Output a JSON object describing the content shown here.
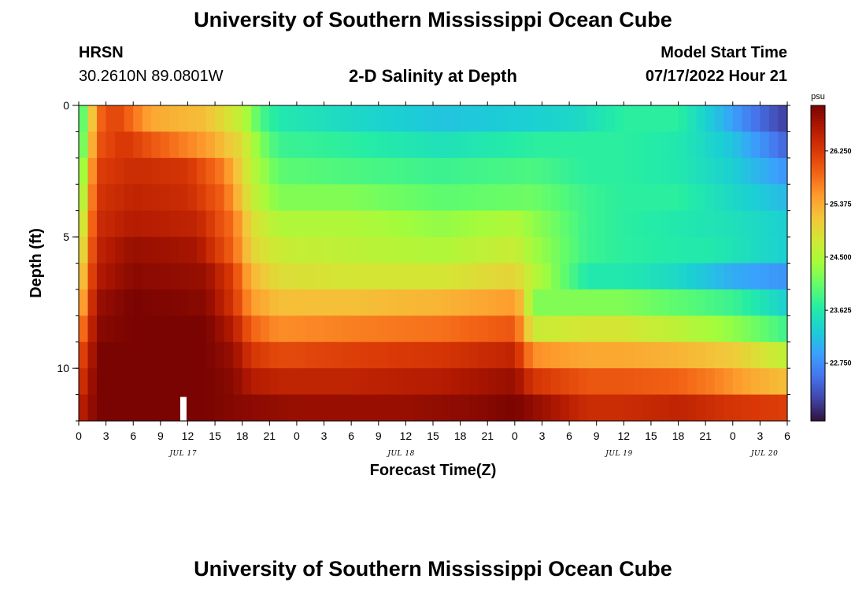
{
  "page": {
    "title_top": "University of Southern Mississippi Ocean Cube",
    "title_bottom": "University of Southern Mississippi Ocean Cube",
    "station": "HRSN",
    "coords": "30.2610N  89.0801W",
    "subtitle": "2-D Salinity at Depth",
    "model_start_label": "Model Start Time",
    "model_start_value": "07/17/2022 Hour 21"
  },
  "chart_data": {
    "type": "heatmap",
    "title": "2-D Salinity at Depth",
    "xlabel": "Forecast Time(Z)",
    "ylabel": "Depth (ft)",
    "x_tick_labels": [
      "0",
      "3",
      "6",
      "9",
      "12",
      "15",
      "18",
      "21",
      "0",
      "3",
      "6",
      "9",
      "12",
      "15",
      "18",
      "21",
      "0",
      "3",
      "6",
      "9",
      "12",
      "15",
      "18",
      "21",
      "0",
      "3",
      "6"
    ],
    "x_hours_range": [
      0,
      78
    ],
    "day_labels": [
      {
        "label": "JUL 17",
        "hour": 11.5
      },
      {
        "label": "JUL 18",
        "hour": 35.5
      },
      {
        "label": "JUL 19",
        "hour": 59.5
      },
      {
        "label": "JUL 20",
        "hour": 75.5
      }
    ],
    "y_tick_labels": [
      "0",
      "5",
      "10"
    ],
    "y_tick_values": [
      0,
      5,
      10
    ],
    "ylim": [
      0,
      12
    ],
    "depth_layers": 12,
    "colorbar": {
      "unit": "psu",
      "range": [
        21.8,
        27.0
      ],
      "tick_labels": [
        "26.250",
        "25.375",
        "24.500",
        "23.625",
        "22.750"
      ],
      "tick_values": [
        26.25,
        25.375,
        24.5,
        23.625,
        22.75
      ],
      "colors": [
        "#30123b",
        "#4145ab",
        "#4675ed",
        "#39a2fc",
        "#1bcfd4",
        "#24eca6",
        "#61fc6c",
        "#a4fc3b",
        "#d1e834",
        "#f3c63a",
        "#fe9b2d",
        "#f36315",
        "#d93806",
        "#b11901",
        "#7a0402"
      ]
    },
    "series": [
      {
        "name": "layer 0-1 ft",
        "keyframes": [
          [
            0,
            23.6
          ],
          [
            1,
            24.5
          ],
          [
            2,
            25.8
          ],
          [
            4,
            26.2
          ],
          [
            6,
            25.8
          ],
          [
            8,
            25.4
          ],
          [
            14,
            25.2
          ],
          [
            18,
            24.6
          ],
          [
            20,
            23.9
          ],
          [
            22,
            23.6
          ],
          [
            30,
            23.4
          ],
          [
            40,
            23.2
          ],
          [
            50,
            23.3
          ],
          [
            55,
            23.4
          ],
          [
            60,
            23.7
          ],
          [
            66,
            23.7
          ],
          [
            70,
            23.2
          ],
          [
            74,
            22.6
          ],
          [
            78,
            22.1
          ]
        ]
      },
      {
        "name": "layer 1-2 ft",
        "keyframes": [
          [
            0,
            23.6
          ],
          [
            1,
            24.7
          ],
          [
            2,
            26.0
          ],
          [
            5,
            26.3
          ],
          [
            8,
            26.0
          ],
          [
            14,
            25.5
          ],
          [
            18,
            24.9
          ],
          [
            20,
            24.2
          ],
          [
            22,
            23.8
          ],
          [
            30,
            23.7
          ],
          [
            40,
            23.5
          ],
          [
            50,
            23.7
          ],
          [
            56,
            23.7
          ],
          [
            60,
            23.7
          ],
          [
            66,
            23.6
          ],
          [
            72,
            23.2
          ],
          [
            78,
            22.4
          ]
        ]
      },
      {
        "name": "layer 2-3 ft",
        "keyframes": [
          [
            0,
            23.8
          ],
          [
            1,
            25.0
          ],
          [
            2,
            26.2
          ],
          [
            6,
            26.4
          ],
          [
            12,
            26.3
          ],
          [
            16,
            25.7
          ],
          [
            19,
            24.6
          ],
          [
            22,
            24.0
          ],
          [
            30,
            23.9
          ],
          [
            40,
            23.8
          ],
          [
            50,
            23.9
          ],
          [
            56,
            23.7
          ],
          [
            60,
            23.7
          ],
          [
            66,
            23.6
          ],
          [
            72,
            23.3
          ],
          [
            78,
            22.8
          ]
        ]
      },
      {
        "name": "layer 3-4 ft",
        "keyframes": [
          [
            0,
            24.0
          ],
          [
            1,
            25.2
          ],
          [
            2,
            26.3
          ],
          [
            6,
            26.5
          ],
          [
            12,
            26.4
          ],
          [
            16,
            25.9
          ],
          [
            19,
            24.7
          ],
          [
            22,
            24.2
          ],
          [
            30,
            24.2
          ],
          [
            40,
            24.0
          ],
          [
            50,
            24.1
          ],
          [
            56,
            23.8
          ],
          [
            60,
            23.7
          ],
          [
            66,
            23.7
          ],
          [
            72,
            23.4
          ],
          [
            78,
            23.1
          ]
        ]
      },
      {
        "name": "layer 4-5 ft",
        "keyframes": [
          [
            0,
            24.2
          ],
          [
            1,
            25.4
          ],
          [
            2,
            26.4
          ],
          [
            6,
            26.6
          ],
          [
            13,
            26.5
          ],
          [
            17,
            25.8
          ],
          [
            19,
            24.9
          ],
          [
            22,
            24.5
          ],
          [
            30,
            24.5
          ],
          [
            40,
            24.3
          ],
          [
            48,
            24.5
          ],
          [
            50,
            24.3
          ],
          [
            56,
            23.8
          ],
          [
            60,
            23.7
          ],
          [
            66,
            23.6
          ],
          [
            72,
            23.5
          ],
          [
            78,
            23.3
          ]
        ]
      },
      {
        "name": "layer 5-6 ft",
        "keyframes": [
          [
            0,
            24.4
          ],
          [
            1,
            25.6
          ],
          [
            2,
            26.5
          ],
          [
            6,
            26.8
          ],
          [
            13,
            26.7
          ],
          [
            17,
            25.9
          ],
          [
            19,
            25.0
          ],
          [
            22,
            24.7
          ],
          [
            30,
            24.6
          ],
          [
            40,
            24.5
          ],
          [
            48,
            24.7
          ],
          [
            50,
            24.4
          ],
          [
            56,
            23.8
          ],
          [
            60,
            23.7
          ],
          [
            70,
            23.6
          ],
          [
            78,
            23.3
          ]
        ]
      },
      {
        "name": "layer 6-7 ft",
        "keyframes": [
          [
            0,
            24.7
          ],
          [
            1,
            25.8
          ],
          [
            2,
            26.6
          ],
          [
            6,
            26.9
          ],
          [
            14,
            26.8
          ],
          [
            17,
            26.2
          ],
          [
            19,
            25.3
          ],
          [
            22,
            24.9
          ],
          [
            30,
            24.8
          ],
          [
            40,
            24.8
          ],
          [
            48,
            25.0
          ],
          [
            50,
            24.6
          ],
          [
            56,
            23.6
          ],
          [
            60,
            23.6
          ],
          [
            66,
            23.4
          ],
          [
            72,
            23.0
          ],
          [
            78,
            22.8
          ]
        ]
      },
      {
        "name": "layer 7-8 ft",
        "keyframes": [
          [
            0,
            25.0
          ],
          [
            1,
            26.0
          ],
          [
            2,
            26.8
          ],
          [
            6,
            27.0
          ],
          [
            14,
            26.9
          ],
          [
            17,
            26.3
          ],
          [
            19,
            25.5
          ],
          [
            22,
            25.2
          ],
          [
            30,
            25.2
          ],
          [
            40,
            25.3
          ],
          [
            48,
            25.5
          ],
          [
            49,
            25.1
          ],
          [
            50,
            24.2
          ],
          [
            56,
            24.2
          ],
          [
            60,
            24.2
          ],
          [
            66,
            24.0
          ],
          [
            72,
            23.8
          ],
          [
            78,
            23.3
          ]
        ]
      },
      {
        "name": "layer 8-9 ft",
        "keyframes": [
          [
            0,
            25.5
          ],
          [
            1,
            26.2
          ],
          [
            2,
            26.9
          ],
          [
            6,
            27.0
          ],
          [
            14,
            27.0
          ],
          [
            17,
            26.6
          ],
          [
            19,
            25.9
          ],
          [
            22,
            25.6
          ],
          [
            30,
            25.7
          ],
          [
            40,
            25.8
          ],
          [
            48,
            26.0
          ],
          [
            49,
            25.4
          ],
          [
            50,
            24.7
          ],
          [
            56,
            24.8
          ],
          [
            60,
            24.8
          ],
          [
            66,
            24.6
          ],
          [
            72,
            24.3
          ],
          [
            78,
            23.8
          ]
        ]
      },
      {
        "name": "layer 9-10 ft",
        "keyframes": [
          [
            0,
            26.0
          ],
          [
            1,
            26.4
          ],
          [
            2,
            27.0
          ],
          [
            14,
            27.0
          ],
          [
            17,
            26.8
          ],
          [
            19,
            26.3
          ],
          [
            22,
            26.1
          ],
          [
            30,
            26.2
          ],
          [
            40,
            26.3
          ],
          [
            48,
            26.5
          ],
          [
            49,
            26.0
          ],
          [
            50,
            25.6
          ],
          [
            56,
            25.4
          ],
          [
            60,
            25.4
          ],
          [
            66,
            25.3
          ],
          [
            72,
            25.1
          ],
          [
            78,
            24.6
          ]
        ]
      },
      {
        "name": "layer 10-11 ft",
        "keyframes": [
          [
            0,
            26.2
          ],
          [
            1,
            26.6
          ],
          [
            2,
            27.0
          ],
          [
            14,
            27.0
          ],
          [
            17,
            26.9
          ],
          [
            19,
            26.6
          ],
          [
            22,
            26.5
          ],
          [
            30,
            26.5
          ],
          [
            40,
            26.6
          ],
          [
            48,
            26.8
          ],
          [
            50,
            26.3
          ],
          [
            56,
            26.0
          ],
          [
            60,
            26.0
          ],
          [
            66,
            25.9
          ],
          [
            70,
            25.7
          ],
          [
            74,
            25.4
          ],
          [
            78,
            25.2
          ]
        ]
      },
      {
        "name": "layer 11-12 ft",
        "keyframes": [
          [
            0,
            26.5
          ],
          [
            1,
            26.7
          ],
          [
            2,
            27.0
          ],
          [
            14,
            27.0
          ],
          [
            18,
            26.9
          ],
          [
            24,
            26.8
          ],
          [
            36,
            26.8
          ],
          [
            44,
            26.9
          ],
          [
            48,
            27.0
          ],
          [
            52,
            26.7
          ],
          [
            56,
            26.4
          ],
          [
            60,
            26.4
          ],
          [
            66,
            26.5
          ],
          [
            72,
            26.3
          ],
          [
            78,
            26.2
          ]
        ]
      }
    ],
    "missing_markers": [
      {
        "hour": 11,
        "layer": 11
      }
    ]
  }
}
